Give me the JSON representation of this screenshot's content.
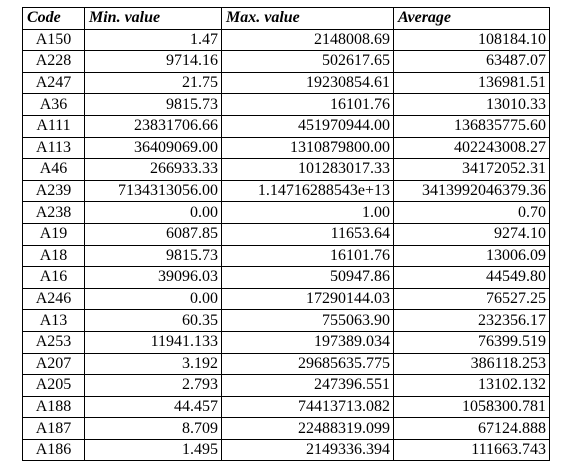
{
  "table": {
    "headers": [
      "Code",
      "Min. value",
      "Max. value",
      "Average"
    ],
    "rows": [
      [
        "A150",
        "1.47",
        "2148008.69",
        "108184.10"
      ],
      [
        "A228",
        "9714.16",
        "502617.65",
        "63487.07"
      ],
      [
        "A247",
        "21.75",
        "19230854.61",
        "136981.51"
      ],
      [
        "A36",
        "9815.73",
        "16101.76",
        "13010.33"
      ],
      [
        "A111",
        "23831706.66",
        "451970944.00",
        "136835775.60"
      ],
      [
        "A113",
        "36409069.00",
        "1310879800.00",
        "402243008.27"
      ],
      [
        "A46",
        "266933.33",
        "101283017.33",
        "34172052.31"
      ],
      [
        "A239",
        "7134313056.00",
        "1.14716288543e+13",
        "3413992046379.36"
      ],
      [
        "A238",
        "0.00",
        "1.00",
        "0.70"
      ],
      [
        "A19",
        "6087.85",
        "11653.64",
        "9274.10"
      ],
      [
        "A18",
        "9815.73",
        "16101.76",
        "13006.09"
      ],
      [
        "A16",
        "39096.03",
        "50947.86",
        "44549.80"
      ],
      [
        "A246",
        "0.00",
        "17290144.03",
        "76527.25"
      ],
      [
        "A13",
        "60.35",
        "755063.90",
        "232356.17"
      ],
      [
        "A253",
        "11941.133",
        "197389.034",
        "76399.519"
      ],
      [
        "A207",
        "3.192",
        "29685635.775",
        "386118.253"
      ],
      [
        "A205",
        "2.793",
        "247396.551",
        "13102.132"
      ],
      [
        "A188",
        "44.457",
        "74413713.082",
        "1058300.781"
      ],
      [
        "A187",
        "8.709",
        "22488319.099",
        "67124.888"
      ],
      [
        "A186",
        "1.495",
        "2149336.394",
        "111663.743"
      ]
    ]
  }
}
